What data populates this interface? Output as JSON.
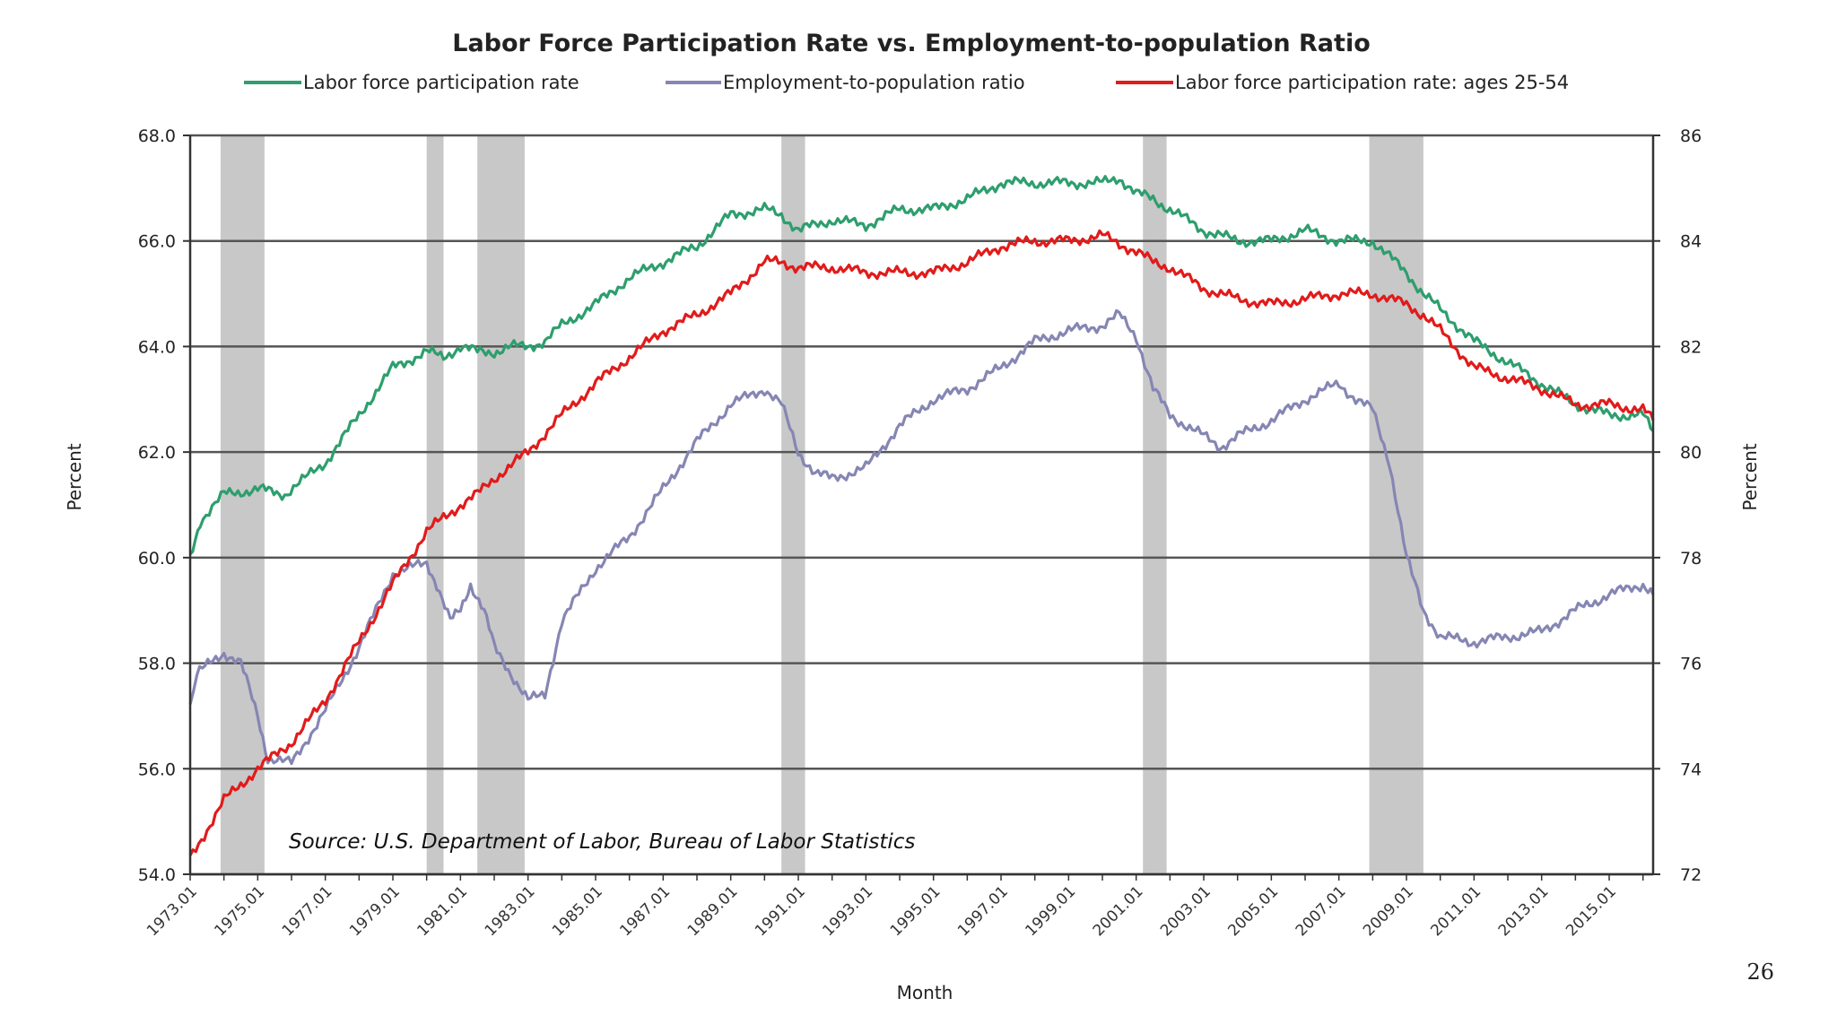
{
  "page_number": "26",
  "chart_data": {
    "type": "line",
    "title": "Labor Force Participation Rate vs. Employment-to-population Ratio",
    "xlabel": "Month",
    "ylabel_left": "Percent",
    "ylabel_right": "Percent",
    "source": "Source: U.S. Department of Labor, Bureau of Labor Statistics",
    "left_ticks": [
      "68.0",
      "66.0",
      "64.0",
      "62.0",
      "60.0",
      "58.0",
      "56.0",
      "54.0"
    ],
    "right_ticks": [
      "86",
      "84",
      "82",
      "80",
      "78",
      "76",
      "74",
      "72"
    ],
    "x_ticks": [
      "1973.01",
      "1975.01",
      "1977.01",
      "1979.01",
      "1981.01",
      "1983.01",
      "1985.01",
      "1987.01",
      "1989.01",
      "1991.01",
      "1993.01",
      "1995.01",
      "1997.01",
      "1999.01",
      "2001.01",
      "2003.01",
      "2005.01",
      "2007.01",
      "2009.01",
      "2011.01",
      "2013.01",
      "2015.01"
    ],
    "ylim_left": [
      54,
      68
    ],
    "ylim_right": [
      72,
      86
    ],
    "xlim": [
      1973.0,
      2016.3
    ],
    "grid": true,
    "legend_position": "top",
    "recessions": [
      [
        1973.9,
        1975.2
      ],
      [
        1980.0,
        1980.5
      ],
      [
        1981.5,
        1982.9
      ],
      [
        1990.5,
        1991.2
      ],
      [
        2001.2,
        2001.9
      ],
      [
        2007.9,
        2009.5
      ]
    ],
    "series": [
      {
        "name": "Labor force participation rate",
        "color": "#2e9e6e",
        "axis": "left",
        "x": [
          1973.0,
          1973.3,
          1974.0,
          1975.0,
          1975.8,
          1977.0,
          1978.0,
          1979.0,
          1980.0,
          1980.5,
          1981.0,
          1981.5,
          1982.0,
          1982.5,
          1983.0,
          1983.5,
          1984.0,
          1985.0,
          1986.0,
          1987.0,
          1988.0,
          1989.0,
          1990.0,
          1990.5,
          1991.0,
          1992.0,
          1993.0,
          1994.0,
          1995.0,
          1996.0,
          1997.0,
          1998.0,
          1999.0,
          2000.0,
          2000.5,
          2001.0,
          2001.5,
          2002.0,
          2003.0,
          2004.0,
          2005.0,
          2006.0,
          2007.0,
          2008.0,
          2009.0,
          2009.5,
          2010.0,
          2011.0,
          2012.0,
          2013.0,
          2014.0,
          2015.0,
          2016.0,
          2016.3
        ],
        "values": [
          60.0,
          60.7,
          61.2,
          61.3,
          61.2,
          61.8,
          62.7,
          63.6,
          63.9,
          63.8,
          64.0,
          63.9,
          63.9,
          64.0,
          64.0,
          64.1,
          64.4,
          64.8,
          65.3,
          65.6,
          65.9,
          66.5,
          66.6,
          66.5,
          66.2,
          66.4,
          66.3,
          66.6,
          66.6,
          66.8,
          67.1,
          67.1,
          67.1,
          67.1,
          67.2,
          66.9,
          66.8,
          66.6,
          66.2,
          66.0,
          66.0,
          66.2,
          66.0,
          66.0,
          65.4,
          65.0,
          64.7,
          64.1,
          63.7,
          63.3,
          62.9,
          62.7,
          62.7,
          62.4
        ]
      },
      {
        "name": "Employment-to-population ratio",
        "color": "#8686b4",
        "axis": "left",
        "x": [
          1973.0,
          1973.2,
          1974.0,
          1974.5,
          1975.0,
          1975.3,
          1976.0,
          1977.0,
          1978.0,
          1979.0,
          1980.0,
          1980.3,
          1980.7,
          1981.0,
          1981.3,
          1981.7,
          1982.0,
          1982.5,
          1983.0,
          1983.5,
          1984.0,
          1985.0,
          1986.0,
          1987.0,
          1988.0,
          1989.0,
          1990.0,
          1990.5,
          1991.0,
          1991.5,
          1992.0,
          1993.0,
          1994.0,
          1995.0,
          1996.0,
          1997.0,
          1998.0,
          1999.0,
          2000.0,
          2000.5,
          2001.0,
          2001.5,
          2002.0,
          2003.0,
          2003.5,
          2004.0,
          2005.0,
          2006.0,
          2007.0,
          2007.5,
          2008.0,
          2008.5,
          2009.0,
          2009.5,
          2010.0,
          2011.0,
          2012.0,
          2013.0,
          2014.0,
          2015.0,
          2016.0,
          2016.3
        ],
        "values": [
          57.2,
          57.8,
          58.2,
          58.0,
          57.0,
          56.2,
          56.1,
          57.1,
          58.3,
          59.7,
          59.9,
          59.5,
          58.8,
          59.0,
          59.5,
          59.0,
          58.3,
          57.8,
          57.3,
          57.4,
          58.8,
          59.8,
          60.4,
          61.3,
          62.2,
          62.9,
          63.2,
          62.9,
          62.0,
          61.6,
          61.5,
          61.7,
          62.5,
          63.0,
          63.2,
          63.6,
          64.1,
          64.3,
          64.4,
          64.6,
          64.2,
          63.2,
          62.7,
          62.3,
          62.1,
          62.3,
          62.6,
          63.0,
          63.3,
          63.0,
          62.8,
          61.8,
          60.0,
          59.0,
          58.5,
          58.4,
          58.5,
          58.6,
          59.0,
          59.3,
          59.5,
          59.3
        ]
      },
      {
        "name": "Labor force participation rate: ages 25-54",
        "color": "#e11b1b",
        "axis": "right",
        "x": [
          1973.0,
          1974.0,
          1975.0,
          1976.0,
          1977.0,
          1978.0,
          1979.0,
          1980.0,
          1981.0,
          1981.5,
          1982.0,
          1983.0,
          1984.0,
          1985.0,
          1986.0,
          1987.0,
          1988.0,
          1989.0,
          1990.0,
          1990.5,
          1991.0,
          1992.0,
          1993.0,
          1994.0,
          1995.0,
          1996.0,
          1997.0,
          1998.0,
          1999.0,
          2000.0,
          2001.0,
          2001.5,
          2002.0,
          2003.0,
          2004.0,
          2005.0,
          2006.0,
          2007.0,
          2008.0,
          2009.0,
          2009.5,
          2010.0,
          2011.0,
          2012.0,
          2013.0,
          2014.0,
          2015.0,
          2016.0,
          2016.3
        ],
        "values": [
          72.3,
          73.4,
          74.0,
          74.5,
          75.3,
          76.4,
          77.5,
          78.5,
          79.0,
          79.2,
          79.5,
          80.0,
          80.7,
          81.3,
          81.8,
          82.3,
          82.6,
          83.0,
          83.6,
          83.6,
          83.5,
          83.5,
          83.4,
          83.4,
          83.4,
          83.6,
          83.9,
          84.0,
          84.0,
          84.1,
          83.8,
          83.6,
          83.5,
          83.1,
          82.9,
          82.8,
          82.9,
          83.0,
          83.0,
          82.8,
          82.6,
          82.3,
          81.6,
          81.4,
          81.2,
          80.9,
          80.9,
          80.8,
          80.6
        ]
      }
    ]
  }
}
